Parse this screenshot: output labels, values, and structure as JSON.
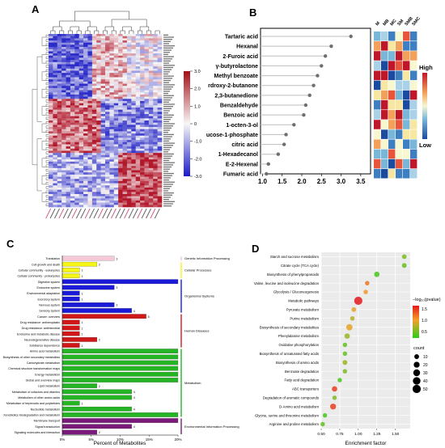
{
  "panels": {
    "a": "A",
    "b": "B",
    "c": "C",
    "d": "D"
  },
  "heatmap": {
    "colorbar_ticks": [
      "3.0",
      "2.0",
      "1.0",
      "0",
      "-1.0",
      "-2.0",
      "-3.0"
    ],
    "colors": {
      "high": "#b2182b",
      "mid": "#f7f7f7",
      "low": "#2c2cc8"
    }
  },
  "chart_data": [
    {
      "type": "scatter",
      "panel": "B",
      "categories": [
        "Tartaric acid",
        "Hexanal",
        "2-Furoic acid",
        "γ-butyrolactone",
        "Methyl benzoate",
        "rdroxy-2-butanone",
        "2,3-butanedione",
        "Benzaldehyde",
        "Benzoic acid",
        "1-octen-3-ol",
        "ucose-1-phosphate",
        "citric acid",
        "1-Hexadecanol",
        "E-2-Hexenal",
        "Fumaric acid"
      ],
      "values": [
        3.25,
        2.75,
        2.6,
        2.5,
        2.4,
        2.3,
        2.2,
        2.1,
        2.05,
        1.8,
        1.6,
        1.55,
        1.4,
        1.15,
        1.1
      ],
      "xlim": [
        0.95,
        3.75
      ],
      "xticks": [
        "1.0",
        "1.5",
        "2.0",
        "2.5",
        "3.0",
        "3.5"
      ],
      "heatmap_columns": [
        "M",
        "MB",
        "MC",
        "SM",
        "SMB",
        "SMC"
      ],
      "legend": {
        "high": "High",
        "low": "Low"
      }
    },
    {
      "type": "bar",
      "panel": "C",
      "orientation": "horizontal",
      "xlabel": "Percent of Metabolites",
      "xticks": [
        "0%",
        "5%",
        "10%",
        "15%",
        "20%"
      ],
      "xlim": [
        0,
        20
      ],
      "categories": [
        "Translation",
        "Cell growth and death",
        "Cellular community - eukaryotes",
        "Cellular community - prokaryotes",
        "Digestive system",
        "Endocrine system",
        "Environmental adaptation",
        "Excretory system",
        "Nervous system",
        "Sensory system",
        "Cancer: overview",
        "Drug resistance: antineoplastic",
        "Drug resistance: antimicrobial",
        "Endocrine and metabolic disease",
        "Neurodegenerative disease",
        "Substance dependence",
        "Amino acid metabolism",
        "Biosynthesis of other secondary metabolites",
        "Carbohydrate metabolism",
        "Chemical structure transformation maps",
        "Energy metabolism",
        "Global and overview maps",
        "Lipid metabolism",
        "Metabolism of cofactors and vitamins",
        "Metabolism of other amino acids",
        "Metabolism of terpenoids and polyketides",
        "Nucleotide metabolism",
        "Xenobiotics biodegradation and metabolism",
        "Membrane transport",
        "Signal transduction",
        "Signaling molecules and interaction"
      ],
      "values": [
        9,
        6,
        3,
        3,
        20,
        9,
        3,
        3,
        9,
        12,
        14.5,
        3,
        3,
        3,
        6,
        3,
        20,
        20,
        20,
        20,
        20,
        20,
        6,
        12,
        12,
        3,
        12,
        20,
        20,
        12,
        6
      ],
      "labels": [
        "3",
        "2",
        "1",
        "1",
        "",
        "3",
        "1",
        "1",
        "3",
        "4",
        "5",
        "1",
        "1",
        "1",
        "2",
        "1",
        "",
        "",
        "",
        "",
        "",
        "",
        "2",
        "4",
        "4",
        "1",
        "4",
        "",
        "",
        "4",
        "2"
      ],
      "groups": [
        {
          "name": "Genetic Information Processing",
          "start": 0,
          "end": 0,
          "color": "#f4c8d4"
        },
        {
          "name": "Cellular Processes",
          "start": 1,
          "end": 3,
          "color": "#f5f516"
        },
        {
          "name": "Organismal Systems",
          "start": 4,
          "end": 9,
          "color": "#1a1ad8"
        },
        {
          "name": "Human Diseases",
          "start": 10,
          "end": 15,
          "color": "#d01818"
        },
        {
          "name": "Metabolism",
          "start": 16,
          "end": 27,
          "color": "#24b424"
        },
        {
          "name": "Environmental Information Processing",
          "start": 28,
          "end": 30,
          "color": "#7a1a7a"
        }
      ]
    },
    {
      "type": "scatter",
      "panel": "D",
      "xlabel": "Enrichment factor",
      "xticks": [
        "0.50",
        "0.75",
        "1.00",
        "1.25",
        "1.50"
      ],
      "xlim": [
        0.5,
        1.7
      ],
      "categories": [
        "Starch and sucrose metabolism",
        "Citrate cycle (TCA cycle)",
        "Biosynthesis of phenylpropanoids",
        "Valine, leucine and isoleucine degradation",
        "Glycolysis / Gluconeogenesis",
        "Metabolic pathways",
        "Pyruvate metabolism",
        "Purine metabolism",
        "Biosynthesis of secondary metabolites",
        "Phenylalanine metabolism",
        "Oxidative phosphorylation",
        "Biosynthesis of unsaturated fatty acids",
        "Biosynthesis of amino acids",
        "Benzoate degradation",
        "Fatty acid degradation",
        "ABC transporters",
        "Degradation of aromatic compounds",
        "D-Amino acid metabolism",
        "Glycine, serine and threonine metabolism",
        "Arginine and proline metabolism"
      ],
      "x": [
        1.62,
        1.62,
        1.25,
        1.12,
        1.1,
        1.0,
        0.94,
        0.92,
        0.88,
        0.85,
        0.82,
        0.82,
        0.82,
        0.82,
        0.75,
        0.68,
        0.68,
        0.66,
        0.55,
        0.52
      ],
      "size": [
        10,
        10,
        15,
        8,
        8,
        50,
        10,
        8,
        25,
        15,
        8,
        8,
        10,
        8,
        8,
        15,
        8,
        20,
        8,
        8
      ],
      "neglog10p": [
        0.6,
        0.5,
        0.4,
        1.3,
        1.1,
        1.8,
        1.0,
        0.8,
        1.0,
        0.7,
        0.5,
        0.5,
        0.7,
        0.6,
        0.4,
        1.6,
        0.6,
        1.6,
        0.4,
        0.5
      ],
      "color_legend": {
        "title": "−log₁₀(pvalue)",
        "ticks": [
          "1.5",
          "1.0",
          "0.5"
        ]
      },
      "size_legend": {
        "title": "count",
        "ticks": [
          "10",
          "20",
          "30",
          "40",
          "50"
        ]
      }
    }
  ]
}
